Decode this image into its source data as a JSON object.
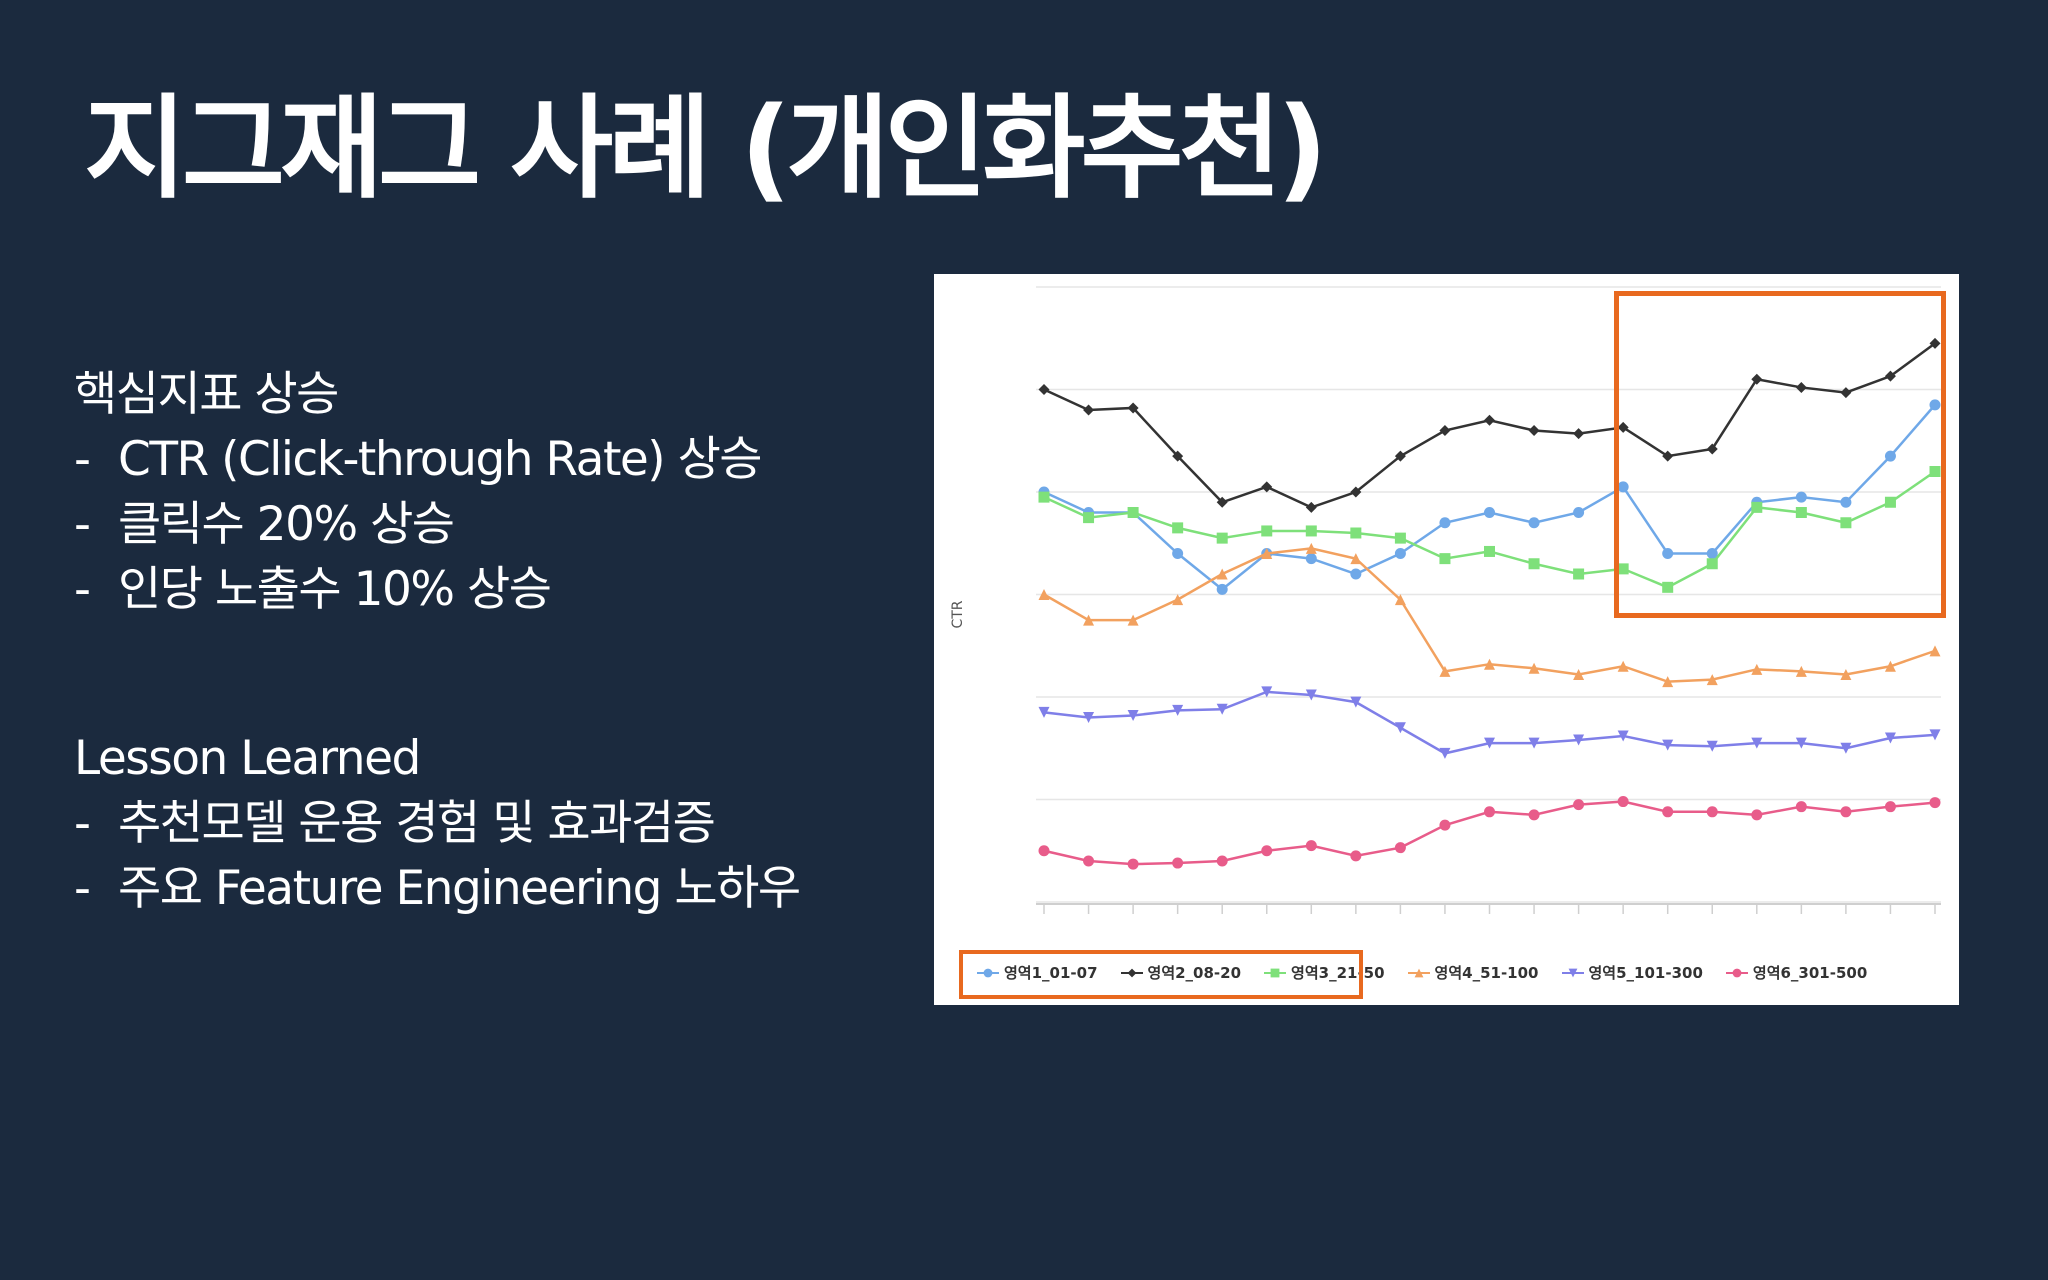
{
  "title": "지그재그 사례 (개인화추천)",
  "metrics": {
    "heading": "핵심지표 상승",
    "bullets": [
      "CTR (Click-through Rate) 상승",
      "클릭수 20% 상승",
      "인당 노출수 10% 상승"
    ]
  },
  "lesson": {
    "heading": "Lesson Learned",
    "bullets": [
      "추천모델 운용 경험 및 효과검증",
      "주요 Feature Engineering 노하우"
    ]
  },
  "bullet_marker": "-",
  "colors": {
    "background": "#1b2a3e",
    "highlight": "#e8691f"
  },
  "chart_data": {
    "type": "line",
    "title": "",
    "xlabel": "",
    "ylabel": "CTR",
    "ylim": [
      0,
      6
    ],
    "grid": true,
    "legend_position": "bottom",
    "x": [
      1,
      2,
      3,
      4,
      5,
      6,
      7,
      8,
      9,
      10,
      11,
      12,
      13,
      14,
      15,
      16,
      17,
      18,
      19,
      20,
      21
    ],
    "series": [
      {
        "name": "영역1_01-07",
        "color": "#6fa8e8",
        "marker": "circle",
        "values": [
          4.0,
          3.8,
          3.8,
          3.4,
          3.05,
          3.4,
          3.35,
          3.2,
          3.4,
          3.7,
          3.8,
          3.7,
          3.8,
          4.05,
          3.4,
          3.4,
          3.9,
          3.95,
          3.9,
          4.35,
          4.85
        ]
      },
      {
        "name": "영역2_08-20",
        "color": "#333333",
        "marker": "diamond",
        "values": [
          5.0,
          4.8,
          4.82,
          4.35,
          3.9,
          4.05,
          3.85,
          4.0,
          4.35,
          4.6,
          4.7,
          4.6,
          4.57,
          4.63,
          4.35,
          4.42,
          5.1,
          5.02,
          4.97,
          5.13,
          5.45
        ]
      },
      {
        "name": "영역3_21-50",
        "color": "#7ee07a",
        "marker": "square",
        "values": [
          3.95,
          3.75,
          3.8,
          3.65,
          3.55,
          3.62,
          3.62,
          3.6,
          3.55,
          3.35,
          3.42,
          3.3,
          3.2,
          3.25,
          3.07,
          3.3,
          3.85,
          3.8,
          3.7,
          3.9,
          4.2
        ]
      },
      {
        "name": "영역4_51-100",
        "color": "#f2a15f",
        "marker": "triangle",
        "values": [
          3.0,
          2.75,
          2.75,
          2.95,
          3.2,
          3.4,
          3.45,
          3.35,
          2.95,
          2.25,
          2.32,
          2.28,
          2.22,
          2.3,
          2.15,
          2.17,
          2.27,
          2.25,
          2.22,
          2.3,
          2.45
        ]
      },
      {
        "name": "영역5_101-300",
        "color": "#7f7fe8",
        "marker": "triangle-down",
        "values": [
          1.85,
          1.8,
          1.82,
          1.87,
          1.88,
          2.05,
          2.02,
          1.95,
          1.7,
          1.45,
          1.55,
          1.55,
          1.58,
          1.62,
          1.53,
          1.52,
          1.55,
          1.55,
          1.5,
          1.6,
          1.63
        ]
      },
      {
        "name": "영역6_301-500",
        "color": "#e85c8a",
        "marker": "circle",
        "values": [
          0.5,
          0.4,
          0.37,
          0.38,
          0.4,
          0.5,
          0.55,
          0.45,
          0.53,
          0.75,
          0.88,
          0.85,
          0.95,
          0.98,
          0.88,
          0.88,
          0.85,
          0.93,
          0.88,
          0.93,
          0.97
        ]
      }
    ]
  }
}
